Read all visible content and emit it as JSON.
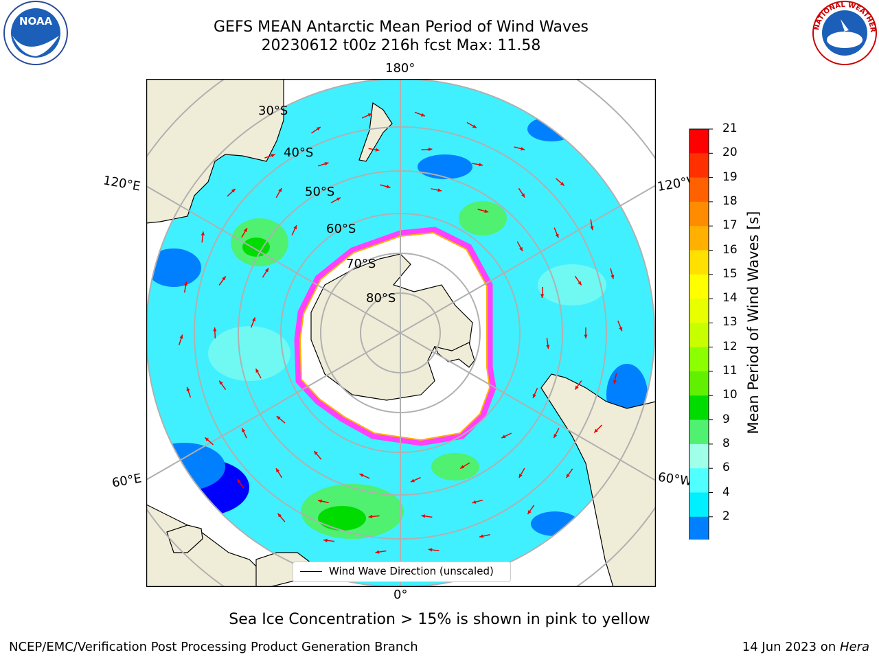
{
  "title_line1": "GEFS MEAN Antarctic Mean Period of Wind Waves",
  "title_line2": "20230612 t00z 216h fcst   Max: 11.58",
  "longitude_labels": {
    "top": "180°",
    "bottom": "0°",
    "upper_left": "120°E",
    "upper_right": "120°W",
    "lower_left": "60°E",
    "lower_right": "60°W"
  },
  "latitude_labels": [
    "30°S",
    "40°S",
    "50°S",
    "60°S",
    "70°S",
    "80°S"
  ],
  "legend_label": "Wind Wave Direction (unscaled)",
  "colorbar": {
    "label": "Mean Period of Wind Waves [s]",
    "ticks": [
      "21",
      "20",
      "19",
      "18",
      "17",
      "16",
      "15",
      "14",
      "13",
      "12",
      "11",
      "10",
      "9",
      "8",
      "6",
      "4",
      "2"
    ],
    "colors": [
      "#ff0000",
      "#ff3000",
      "#ff6000",
      "#ff8c00",
      "#ffb000",
      "#ffe000",
      "#ffff00",
      "#e8ff00",
      "#c8ff00",
      "#8cff00",
      "#60f000",
      "#00dc00",
      "#50f070",
      "#a0ffe8",
      "#50ffff",
      "#00f0ff",
      "#0080ff"
    ],
    "under_color": "#0000ff"
  },
  "colors": {
    "land": "#efedd8",
    "ocean": "#40f0ff",
    "grid": "#b0b0b0",
    "sea_ice_edge": "#ff40ff",
    "arrow": "#ee0000"
  },
  "note": "Sea Ice Concentration > 15% is shown in pink to yellow",
  "footer_left": "NCEP/EMC/Verification Post Processing Product Generation Branch",
  "footer_right_date": "14 Jun 2023 on ",
  "footer_right_host": "Hera",
  "logos": {
    "left": "NOAA",
    "right": "NATIONAL WEATHER SERVICE"
  }
}
